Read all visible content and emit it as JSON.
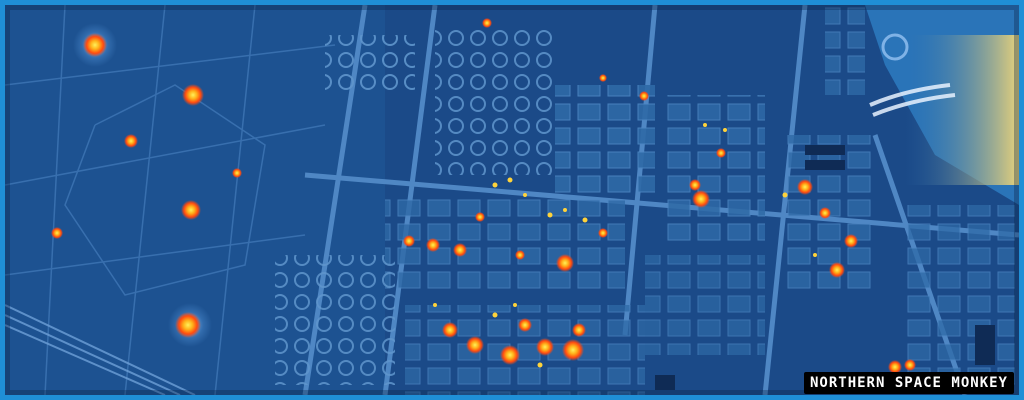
{
  "image": {
    "description_colors": {
      "background": "#173f78",
      "hot_core": "#ffd21a",
      "hot_edge": "#ff4a10",
      "structure": "#5a8fc8",
      "frame": "#1f8fd6"
    }
  },
  "watermark": {
    "text": "NORTHERN SPACE MONKEY"
  }
}
